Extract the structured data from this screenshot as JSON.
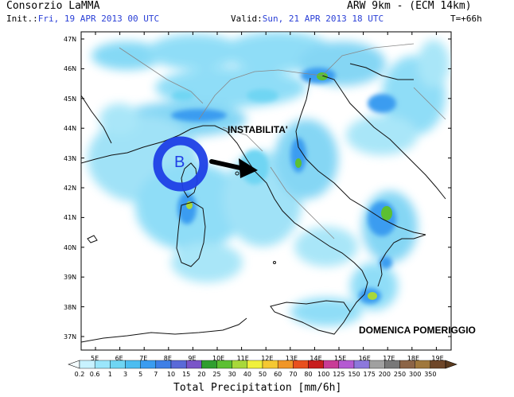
{
  "header": {
    "org": "Consorzio LaMMA",
    "init_label": "Init.:",
    "init_value": "Fri, 19 APR 2013 00 UTC",
    "valid_label": "Valid:",
    "valid_value": "Sun, 21 APR 2013 18 UTC",
    "model": "ARW 9km - (ECM 14km)",
    "lead": "T=+66h"
  },
  "map": {
    "lat_labels": [
      "47N",
      "46N",
      "45N",
      "44N",
      "43N",
      "42N",
      "41N",
      "40N",
      "39N",
      "38N",
      "37N"
    ],
    "lon_labels": [
      "5E",
      "6E",
      "7E",
      "8E",
      "9E",
      "10E",
      "11E",
      "12E",
      "13E",
      "14E",
      "15E",
      "16E",
      "17E",
      "18E",
      "19E"
    ],
    "low_label": "B",
    "annotation_top": "INSTABILITA'",
    "annotation_bottom": "DOMENICA POMERIGGIO",
    "colors": {
      "sea": "#ffffff",
      "coast": "#111111",
      "low_ring": "#1f3fe6",
      "low_fill": "#a8dcf5"
    }
  },
  "colorbar": {
    "labels": [
      "0.2",
      "0.6",
      "1",
      "3",
      "5",
      "7",
      "10",
      "15",
      "20",
      "25",
      "30",
      "40",
      "50",
      "60",
      "70",
      "80",
      "100",
      "125",
      "150",
      "175",
      "200",
      "250",
      "300",
      "350"
    ],
    "colors": [
      "#c8f2ff",
      "#9be6fb",
      "#6fd5f3",
      "#4dbdf0",
      "#3a9cf0",
      "#3f7fe6",
      "#5a6ad8",
      "#7a55c8",
      "#2f9e2f",
      "#5cc032",
      "#a8d83a",
      "#f0f03c",
      "#f5c832",
      "#f09628",
      "#e8501e",
      "#c81e1e",
      "#c83c96",
      "#b45ad2",
      "#8c78dc",
      "#a0a0a0",
      "#787878",
      "#8c6446",
      "#a0783c",
      "#6e4628"
    ],
    "title": "Total Precipitation [mm/6h]"
  }
}
